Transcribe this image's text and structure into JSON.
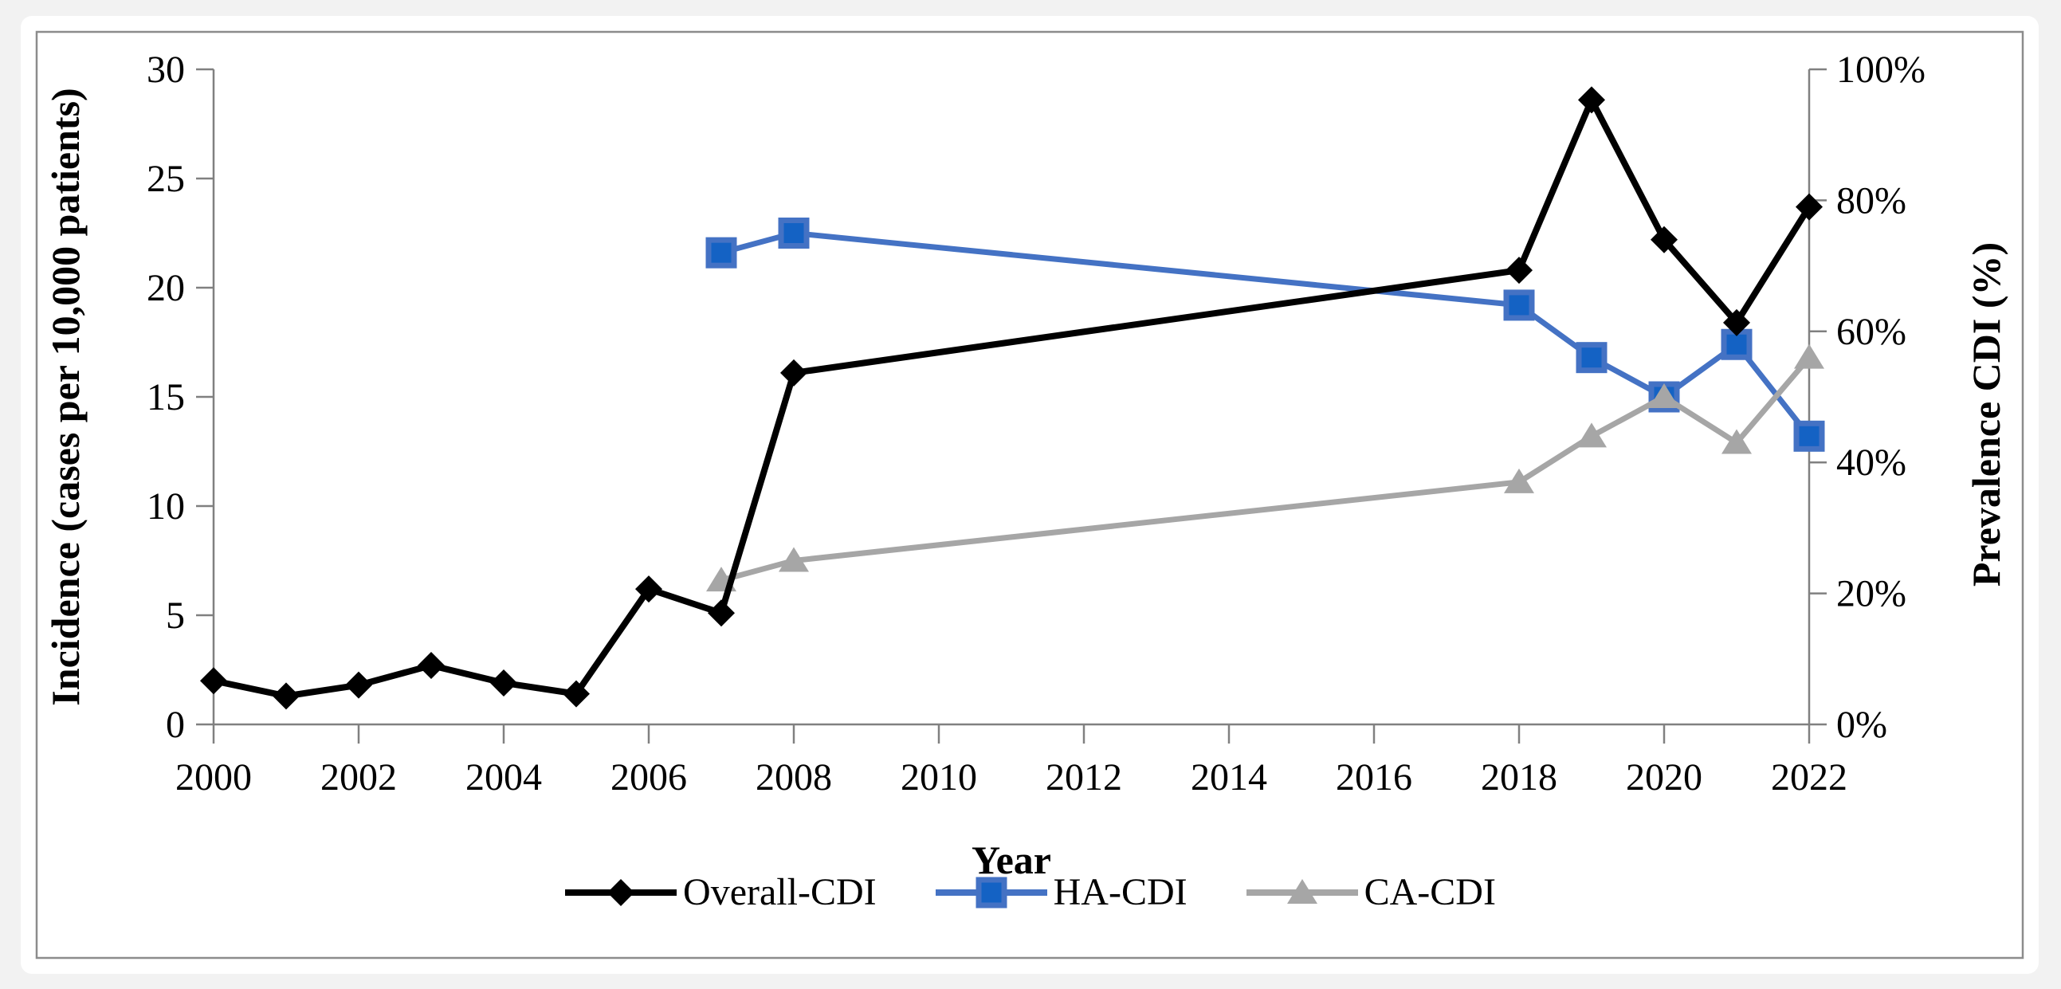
{
  "figure": {
    "page_background": "#f2f2f2",
    "card_background": "#ffffff",
    "frame_border_color": "#8c8c8c",
    "axis_color": "#808080",
    "text_color": "#000000"
  },
  "chart_data": {
    "type": "line",
    "xlabel": "Year",
    "ylabel_left": "Incidence (cases per 10,000 patients)",
    "ylabel_right": "Prevalence CDI (%)",
    "x_range": [
      2000,
      2022
    ],
    "x_ticks": [
      {
        "v": 2000,
        "label": "2000"
      },
      {
        "v": 2002,
        "label": "2002"
      },
      {
        "v": 2004,
        "label": "2004"
      },
      {
        "v": 2006,
        "label": "2006"
      },
      {
        "v": 2008,
        "label": "2008"
      },
      {
        "v": 2010,
        "label": "2010"
      },
      {
        "v": 2012,
        "label": "2012"
      },
      {
        "v": 2014,
        "label": "2014"
      },
      {
        "v": 2016,
        "label": "2016"
      },
      {
        "v": 2018,
        "label": "2018"
      },
      {
        "v": 2020,
        "label": "2020"
      },
      {
        "v": 2022,
        "label": "2022"
      }
    ],
    "ylim_left": [
      0,
      30
    ],
    "yticks_left": [
      {
        "v": 0,
        "label": "0"
      },
      {
        "v": 5,
        "label": "5"
      },
      {
        "v": 10,
        "label": "10"
      },
      {
        "v": 15,
        "label": "15"
      },
      {
        "v": 20,
        "label": "20"
      },
      {
        "v": 25,
        "label": "25"
      },
      {
        "v": 30,
        "label": "30"
      }
    ],
    "ylim_right": [
      0,
      100
    ],
    "yticks_right": [
      {
        "v": 0,
        "label": "0%"
      },
      {
        "v": 20,
        "label": "20%"
      },
      {
        "v": 40,
        "label": "40%"
      },
      {
        "v": 60,
        "label": "60%"
      },
      {
        "v": 80,
        "label": "80%"
      },
      {
        "v": 100,
        "label": "100%"
      }
    ],
    "grid": false,
    "legend_position": "bottom",
    "series": [
      {
        "name": "Overall-CDI",
        "slug": "overall-cdi",
        "axis": "left",
        "marker": "diamond",
        "color": "#000000",
        "marker_fill": "#000000",
        "points": [
          [
            2000,
            2.0
          ],
          [
            2001,
            1.3
          ],
          [
            2002,
            1.8
          ],
          [
            2003,
            2.7
          ],
          [
            2004,
            1.9
          ],
          [
            2005,
            1.4
          ],
          [
            2006,
            6.2
          ],
          [
            2007,
            5.1
          ],
          [
            2008,
            16.1
          ],
          [
            2018,
            20.8
          ],
          [
            2019,
            28.6
          ],
          [
            2020,
            22.2
          ],
          [
            2021,
            18.4
          ],
          [
            2022,
            23.7
          ]
        ]
      },
      {
        "name": "HA-CDI",
        "slug": "ha-cdi",
        "axis": "right",
        "marker": "square",
        "color": "#4472C4",
        "marker_fill": "#1462C4",
        "points": [
          [
            2007,
            72
          ],
          [
            2008,
            75
          ],
          [
            2018,
            64
          ],
          [
            2019,
            56
          ],
          [
            2020,
            50
          ],
          [
            2021,
            58
          ],
          [
            2022,
            44
          ]
        ]
      },
      {
        "name": "CA-CDI",
        "slug": "ca-cdi",
        "axis": "right",
        "marker": "triangle",
        "color": "#A6A6A6",
        "marker_fill": "#A6A6A6",
        "points": [
          [
            2007,
            22
          ],
          [
            2008,
            25
          ],
          [
            2018,
            37
          ],
          [
            2019,
            44
          ],
          [
            2020,
            50
          ],
          [
            2021,
            43
          ],
          [
            2022,
            56
          ]
        ]
      }
    ]
  }
}
